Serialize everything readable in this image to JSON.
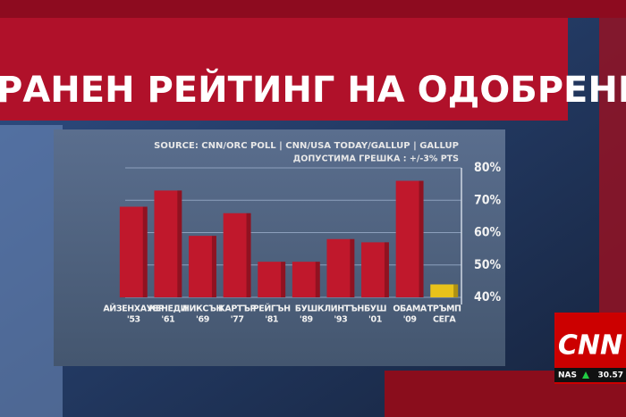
{
  "chart_data": {
    "type": "bar",
    "title": "РАНЕН РЕЙТИНГ НА ОДОБРЕНИЕ",
    "source": "SOURCE: CNN/ORC POLL | CNN/USA TODAY/GALLUP | GALLUP",
    "note": "ДОПУСТИМА ГРЕШКА : +/-3% PTS",
    "categories": [
      [
        "АЙЗЕНХАУЕР",
        "'53"
      ],
      [
        "КЕНЕДИ",
        "'61"
      ],
      [
        "НИКСЪН",
        "'69"
      ],
      [
        "КАРТЪР",
        "'77"
      ],
      [
        "РЕЙГЪН",
        "'81"
      ],
      [
        "БУШ",
        "'89"
      ],
      [
        "КЛИНТЪН",
        "'93"
      ],
      [
        "БУШ",
        "'01"
      ],
      [
        "ОБАМА",
        "'09"
      ],
      [
        "ТРЪМП",
        "СЕГА"
      ]
    ],
    "values": [
      68,
      73,
      59,
      66,
      51,
      51,
      58,
      57,
      76,
      44
    ],
    "colors": [
      "#c0182c",
      "#c0182c",
      "#c0182c",
      "#c0182c",
      "#c0182c",
      "#c0182c",
      "#c0182c",
      "#c0182c",
      "#c0182c",
      "#e8c21a"
    ],
    "ylim": [
      40,
      80
    ],
    "yticks": [
      {
        "value": 40,
        "label": "40%"
      },
      {
        "value": 50,
        "label": "50%"
      },
      {
        "value": 60,
        "label": "60%"
      },
      {
        "value": 70,
        "label": "70%"
      },
      {
        "value": 80,
        "label": "80%"
      }
    ],
    "grid": true
  },
  "overlay": {
    "logo": "CNN",
    "ticker": {
      "symbol": "NAS",
      "value": 30.57
    }
  }
}
